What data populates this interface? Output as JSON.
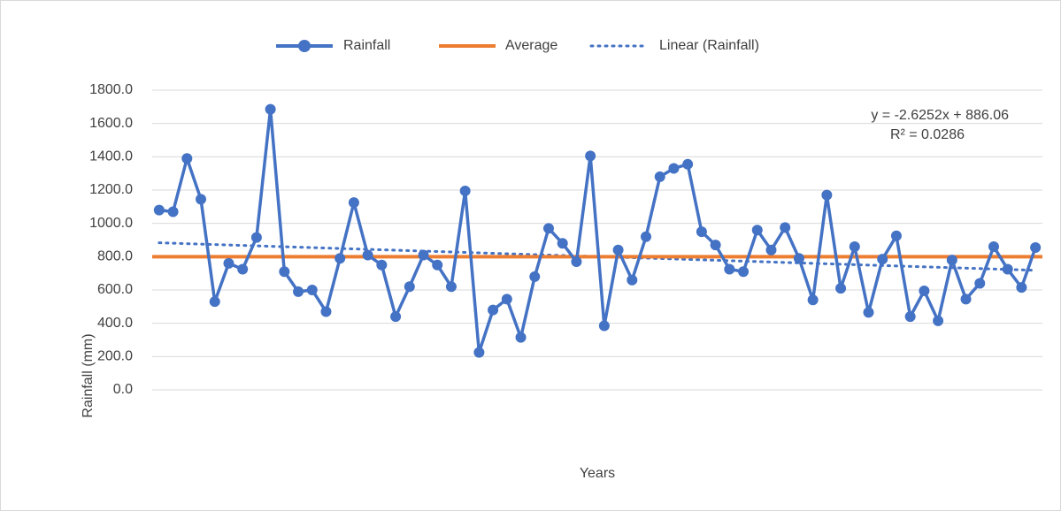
{
  "chart_data": {
    "type": "line",
    "y_axis_label": "Rainfall (mm)",
    "x_axis_label": "Years",
    "ylim": [
      0,
      1800
    ],
    "yticks": [
      {
        "value": 0,
        "label": "0.0"
      },
      {
        "value": 200,
        "label": "200.0"
      },
      {
        "value": 400,
        "label": "400.0"
      },
      {
        "value": 600,
        "label": "600.0"
      },
      {
        "value": 800,
        "label": "800.0"
      },
      {
        "value": 1000,
        "label": "1000.0"
      },
      {
        "value": 1200,
        "label": "1200.0"
      },
      {
        "value": 1400,
        "label": "1400.0"
      },
      {
        "value": 1600,
        "label": "1600.0"
      },
      {
        "value": 1800,
        "label": "1800.0"
      }
    ],
    "grid": true,
    "legend": "top",
    "series": [
      {
        "name": "Rainfall",
        "color": "#4472c4",
        "values": [
          1080,
          1070,
          1390,
          1145,
          530,
          760,
          725,
          915,
          1685,
          710,
          590,
          600,
          470,
          790,
          1125,
          810,
          750,
          440,
          620,
          810,
          750,
          620,
          1195,
          225,
          480,
          545,
          315,
          680,
          970,
          880,
          770,
          1405,
          385,
          840,
          660,
          920,
          1280,
          1330,
          1355,
          950,
          870,
          725,
          710,
          960,
          840,
          975,
          790,
          540,
          1170,
          610,
          860,
          465,
          785,
          925,
          440,
          595,
          415,
          780,
          545,
          640,
          860,
          725,
          615,
          855
        ]
      },
      {
        "name": "Average",
        "color": "#ed7d31",
        "value": 800
      }
    ],
    "trendline": {
      "name": "Linear (Rainfall)",
      "color": "#4472c4",
      "slope": -2.6252,
      "intercept": 886.06,
      "equation": "y = -2.6252x + 886.06",
      "r_squared": "R² = 0.0286"
    }
  }
}
